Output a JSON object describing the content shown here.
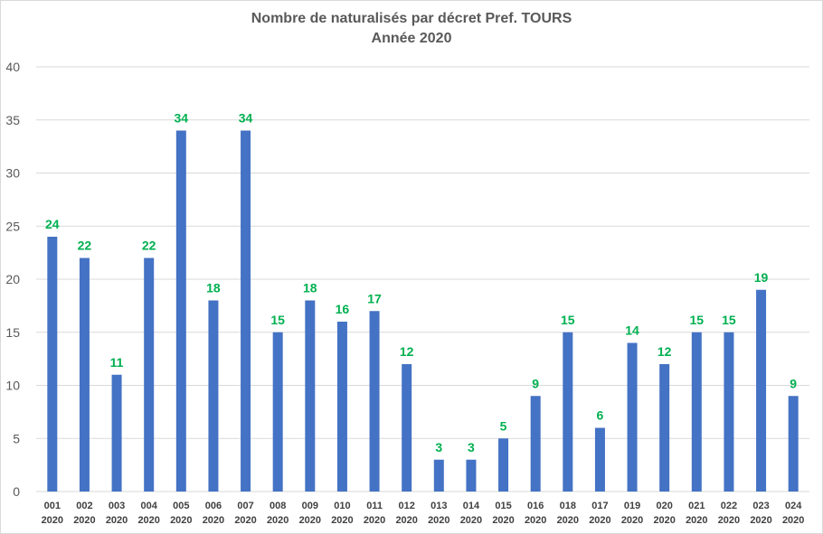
{
  "chart_data": {
    "type": "bar",
    "title": "Nombre de naturalisés par décret Pref. TOURS",
    "subtitle": "Année 2020",
    "categories": [
      [
        "001",
        "2020"
      ],
      [
        "002",
        "2020"
      ],
      [
        "003",
        "2020"
      ],
      [
        "004",
        "2020"
      ],
      [
        "005",
        "2020"
      ],
      [
        "006",
        "2020"
      ],
      [
        "007",
        "2020"
      ],
      [
        "008",
        "2020"
      ],
      [
        "009",
        "2020"
      ],
      [
        "010",
        "2020"
      ],
      [
        "011",
        "2020"
      ],
      [
        "012",
        "2020"
      ],
      [
        "013",
        "2020"
      ],
      [
        "014",
        "2020"
      ],
      [
        "015",
        "2020"
      ],
      [
        "016",
        "2020"
      ],
      [
        "018",
        "2020"
      ],
      [
        "017",
        "2020"
      ],
      [
        "019",
        "2020"
      ],
      [
        "020",
        "2020"
      ],
      [
        "021",
        "2020"
      ],
      [
        "022",
        "2020"
      ],
      [
        "023",
        "2020"
      ],
      [
        "024",
        "2020"
      ]
    ],
    "values": [
      24,
      22,
      11,
      22,
      34,
      18,
      34,
      15,
      18,
      16,
      17,
      12,
      3,
      3,
      5,
      9,
      15,
      6,
      14,
      12,
      15,
      15,
      19,
      9
    ],
    "ylim": [
      0,
      40
    ],
    "yticks": [
      0,
      5,
      10,
      15,
      20,
      25,
      30,
      35,
      40
    ],
    "grid": true,
    "bar_color": "#4472c4",
    "label_color": "#00b050",
    "grid_color": "#d9d9d9",
    "xlabel": "",
    "ylabel": ""
  }
}
